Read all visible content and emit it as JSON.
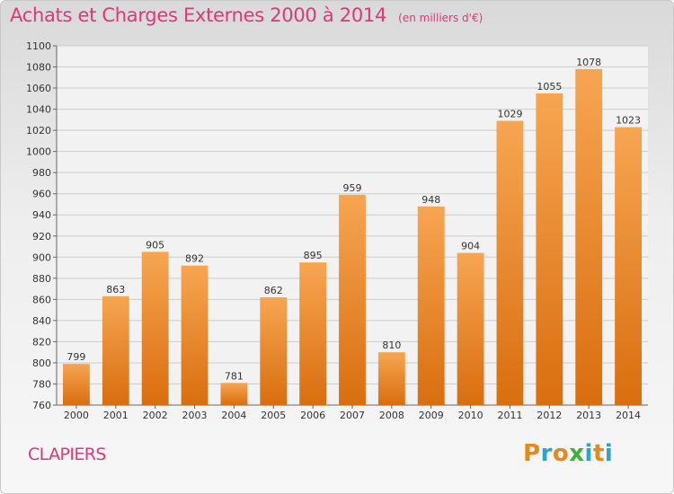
{
  "header": {
    "title": "Achats et Charges Externes 2000 à 2014",
    "subtitle": "(en milliers d'€)"
  },
  "footer": {
    "commune": "CLAPIERS",
    "logo": {
      "letters": [
        "P",
        "r",
        "o",
        "x",
        "i",
        "t",
        "i"
      ],
      "colors": [
        "#e8871e",
        "#2aa4d4",
        "#e8871e",
        "#3bb03b",
        "#2aa4d4",
        "#e8871e",
        "#2aa4d4"
      ]
    }
  },
  "chart_data": {
    "type": "bar",
    "title": "Achats et Charges Externes 2000 à 2014",
    "subtitle": "(en milliers d'€)",
    "categories": [
      "2000",
      "2001",
      "2002",
      "2003",
      "2004",
      "2005",
      "2006",
      "2007",
      "2008",
      "2009",
      "2010",
      "2011",
      "2012",
      "2013",
      "2014"
    ],
    "values": [
      799,
      863,
      905,
      892,
      781,
      862,
      895,
      959,
      810,
      948,
      904,
      1029,
      1055,
      1078,
      1023
    ],
    "ylim": [
      760,
      1100
    ],
    "yticks": [
      760,
      780,
      800,
      820,
      840,
      860,
      880,
      900,
      920,
      940,
      960,
      980,
      1000,
      1020,
      1040,
      1060,
      1080,
      1100
    ],
    "grid": true,
    "bar_color_top": "#f7a552",
    "bar_color_bottom": "#d96e0f",
    "data_labels": true
  }
}
